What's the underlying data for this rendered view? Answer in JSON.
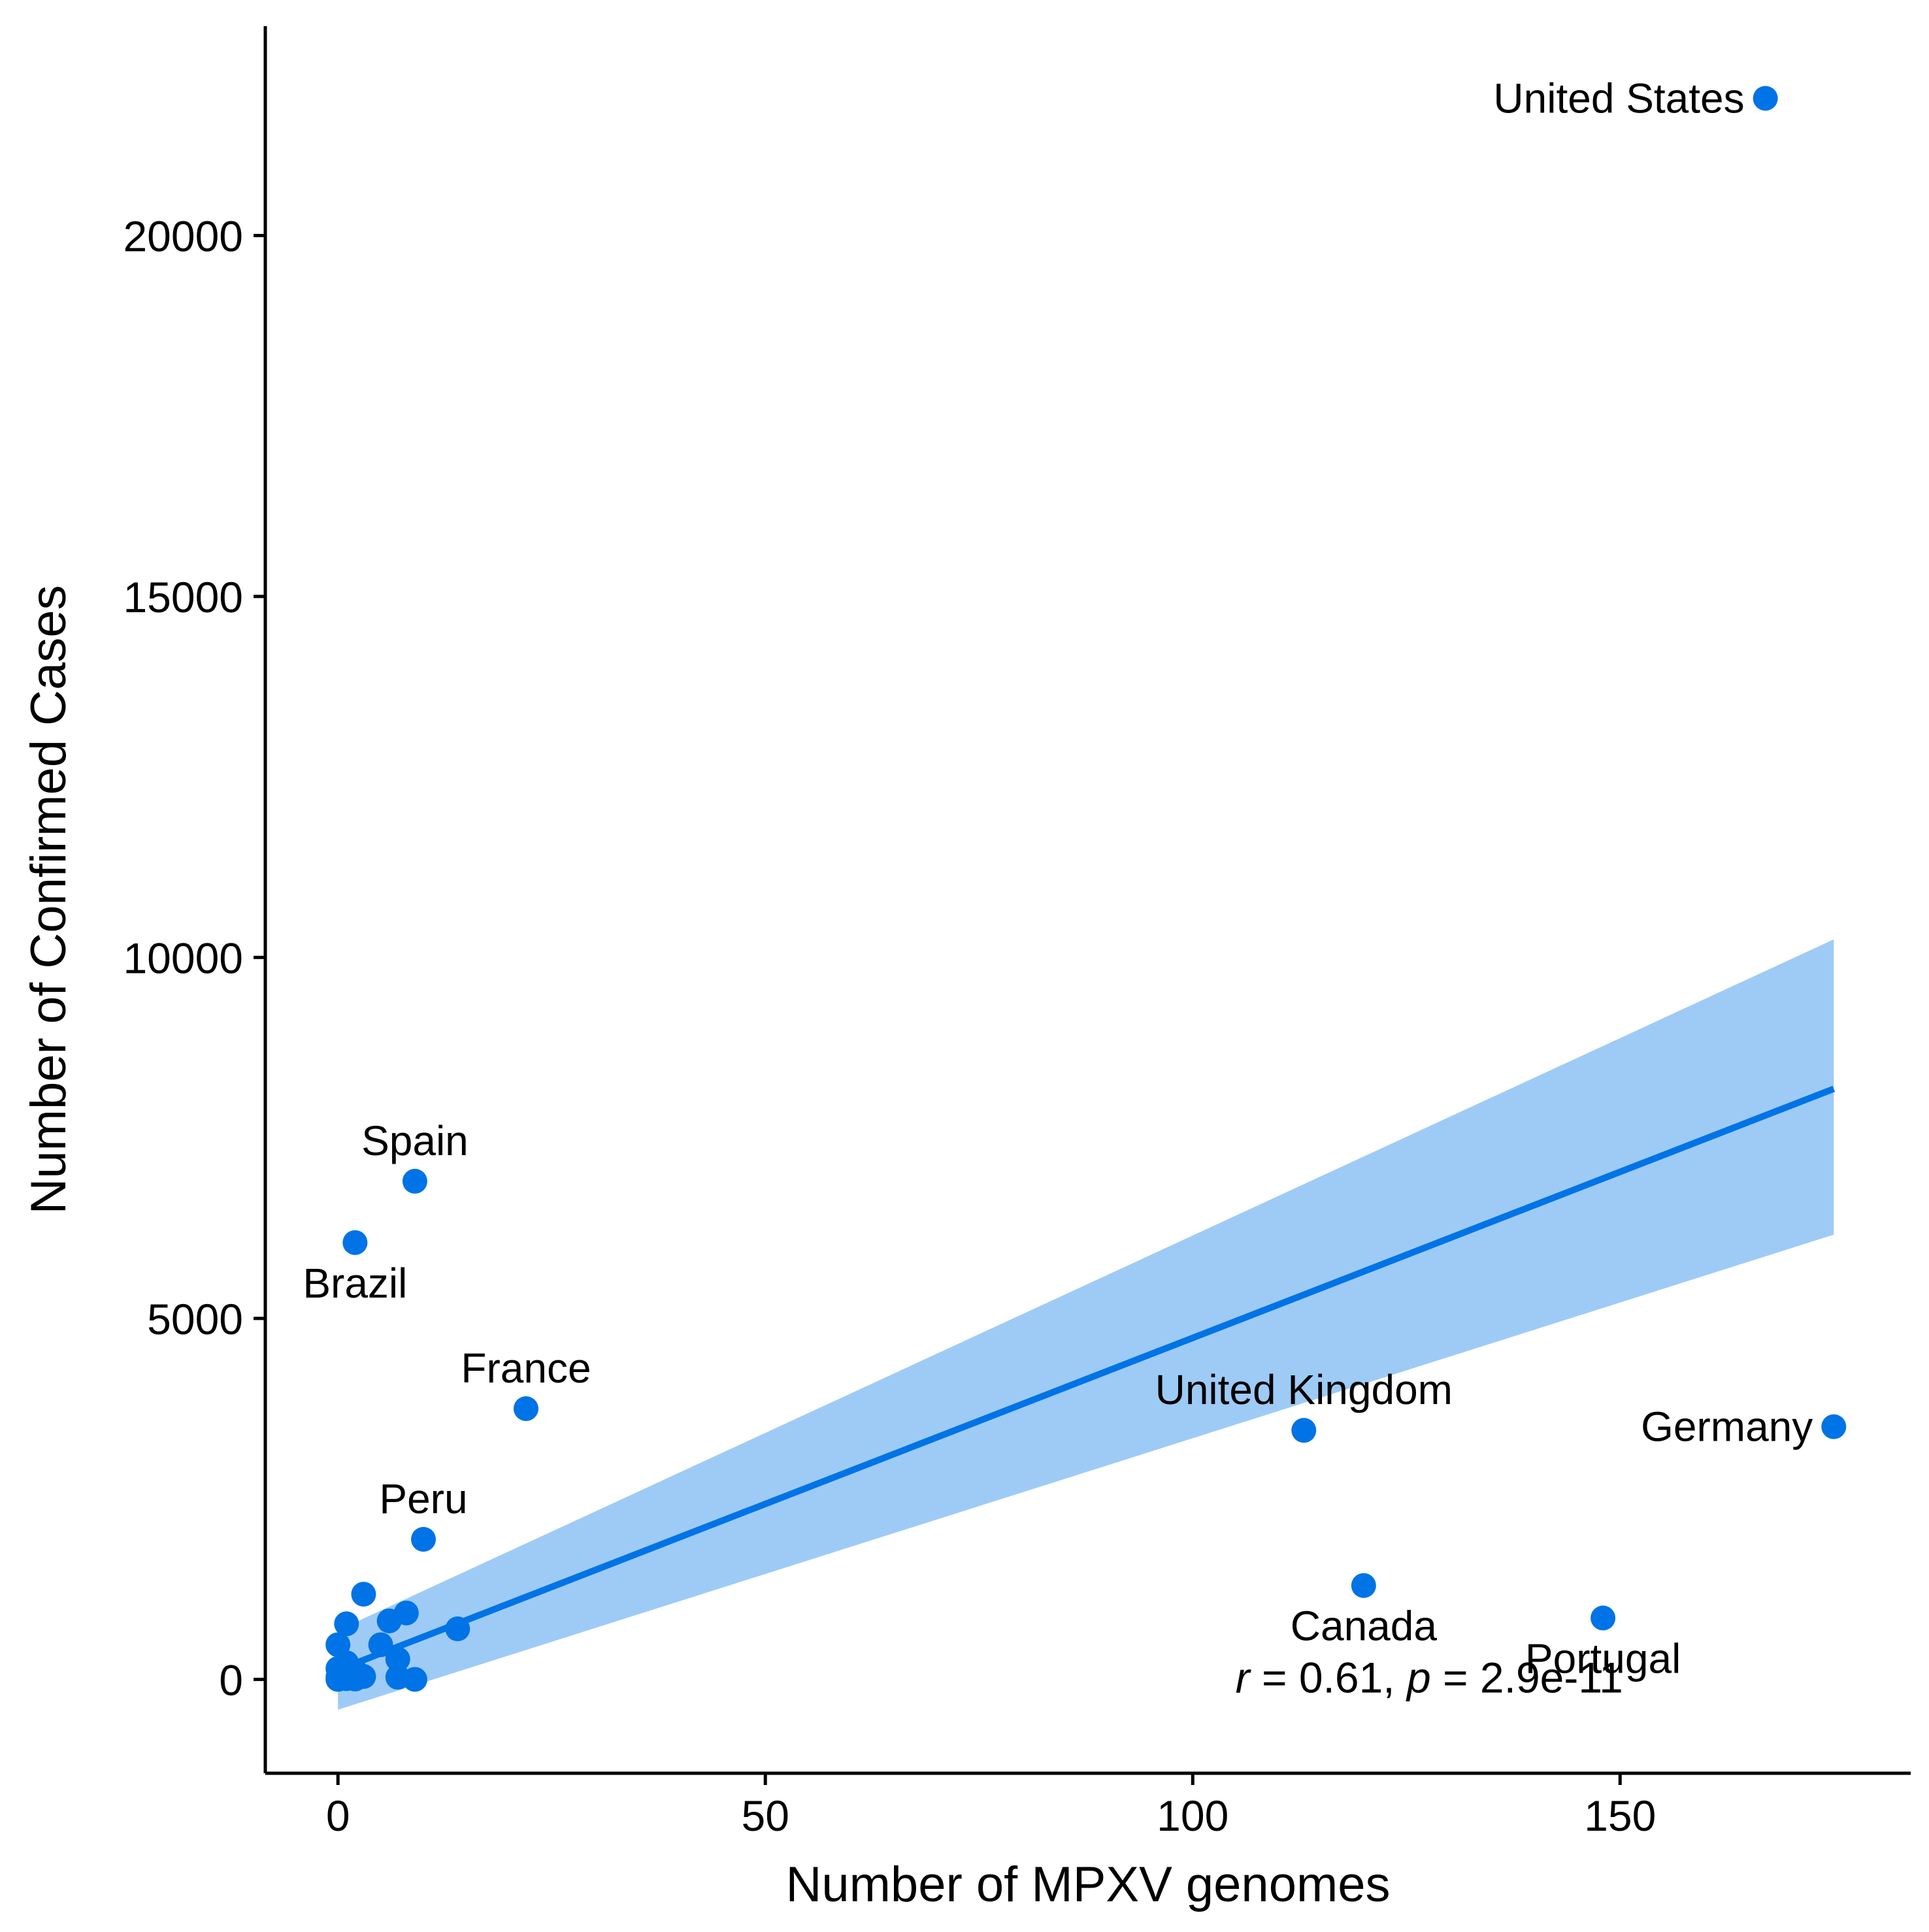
{
  "chart_data": {
    "type": "scatter",
    "title": "",
    "xlabel": "Number of MPXV genomes",
    "ylabel": "Number of Confirmed Cases",
    "xlim": [
      -8.5,
      184
    ],
    "ylim": [
      -1300,
      22900
    ],
    "x_ticks": [
      0,
      50,
      100,
      150
    ],
    "y_ticks": [
      0,
      5000,
      10000,
      15000,
      20000
    ],
    "grid": false,
    "legend": "none",
    "colors": {
      "point": "#0073e6",
      "line": "#0073e6",
      "band": "#9ecbf6",
      "axis": "#000000"
    },
    "points": [
      {
        "x": 167,
        "y": 21900,
        "label": "United States",
        "label_pos": "left"
      },
      {
        "x": 9,
        "y": 6900,
        "label": "Spain",
        "label_pos": "above"
      },
      {
        "x": 2,
        "y": 6050,
        "label": "Brazil",
        "label_pos": "below"
      },
      {
        "x": 22,
        "y": 3750,
        "label": "France",
        "label_pos": "above"
      },
      {
        "x": 113,
        "y": 3450,
        "label": "United Kingdom",
        "label_pos": "above"
      },
      {
        "x": 175,
        "y": 3500,
        "label": "Germany",
        "label_pos": "left"
      },
      {
        "x": 10,
        "y": 1940,
        "label": "Peru",
        "label_pos": "above"
      },
      {
        "x": 120,
        "y": 1300,
        "label": "Canada",
        "label_pos": "below"
      },
      {
        "x": 148,
        "y": 850,
        "label": "Portugal",
        "label_pos": "below"
      },
      {
        "x": 3,
        "y": 1180,
        "label": ""
      },
      {
        "x": 1,
        "y": 770,
        "label": ""
      },
      {
        "x": 8,
        "y": 920,
        "label": ""
      },
      {
        "x": 6,
        "y": 810,
        "label": ""
      },
      {
        "x": 14,
        "y": 700,
        "label": ""
      },
      {
        "x": 0,
        "y": 480,
        "label": ""
      },
      {
        "x": 5,
        "y": 480,
        "label": ""
      },
      {
        "x": 7,
        "y": 280,
        "label": ""
      },
      {
        "x": 1,
        "y": 230,
        "label": ""
      },
      {
        "x": 0,
        "y": 150,
        "label": ""
      },
      {
        "x": 2,
        "y": 120,
        "label": ""
      },
      {
        "x": 3,
        "y": 40,
        "label": ""
      },
      {
        "x": 0,
        "y": 30,
        "label": ""
      },
      {
        "x": 1,
        "y": 10,
        "label": ""
      },
      {
        "x": 2,
        "y": 5,
        "label": ""
      },
      {
        "x": 7,
        "y": 30,
        "label": ""
      },
      {
        "x": 9,
        "y": 0,
        "label": ""
      },
      {
        "x": 0,
        "y": 0,
        "label": ""
      }
    ],
    "regression": {
      "x": [
        0,
        175
      ],
      "y": [
        130,
        8180
      ],
      "band_lower": [
        -420,
        6160
      ],
      "band_upper": [
        680,
        10250
      ]
    },
    "annotation": {
      "r_symbol": "r",
      "r_text": " = 0.61, ",
      "p_symbol": "p",
      "p_text": " = 2.9e-11",
      "x": 105,
      "y": 0
    }
  }
}
